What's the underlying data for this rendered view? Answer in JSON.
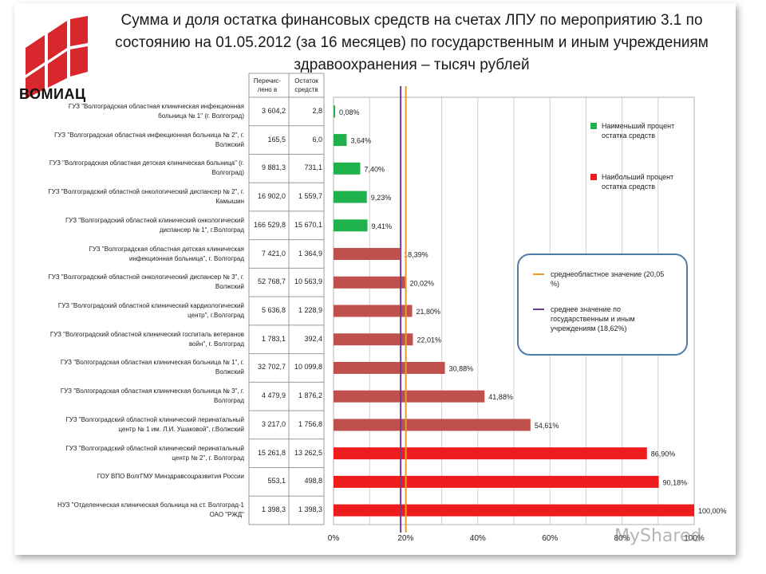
{
  "title": "Сумма и доля остатка финансовых средств на счетах ЛПУ по мероприятию 3.1 по состоянию на 01.05.2012 (за 16 месяцев) по государственным и иным учреждениям здравоохранения – тысяч рублей",
  "logo_text": "ВОМИАЦ",
  "watermark": "MyShared",
  "table_headers": [
    "Перечис-лено в",
    "Остаток средств"
  ],
  "legend": {
    "min": "Наименьший процент остатка средств",
    "max": "Наибольший процент остатка средств",
    "avg_region": "среднеобластное значение (20,05 %)",
    "avg_gov": "среднее значение по государственным и иным учреждениям (18,62%)"
  },
  "colors": {
    "green": "#1fb14b",
    "brown": "#c0504d",
    "red": "#ee1c1c",
    "avg_region": "#e69b2f",
    "avg_gov": "#6a3f8f"
  },
  "chart_data": {
    "type": "bar",
    "orientation": "horizontal",
    "x_ticks": [
      "0%",
      "20%",
      "40%",
      "60%",
      "80%",
      "100%"
    ],
    "xlim": [
      0,
      100
    ],
    "reference_lines": [
      {
        "name": "среднеобластное значение",
        "value": 20.05
      },
      {
        "name": "среднее значение по государственным и иным учреждениям",
        "value": 18.62
      }
    ],
    "rows": [
      {
        "label": "ГУЗ \"Волгоградская областная клиническая инфекционная больница № 1\" (г. Волгоград)",
        "transferred": "3 604,2",
        "remainder": "2,8",
        "value": 0.08,
        "value_label": "0,08%",
        "group": "green"
      },
      {
        "label": "ГУЗ \"Волгоградская областная инфекционная больница № 2\", г. Волжский",
        "transferred": "165,5",
        "remainder": "6,0",
        "value": 3.64,
        "value_label": "3,64%",
        "group": "green"
      },
      {
        "label": "ГУЗ \"Волгоградская областная детская клиническая больница\" (г. Волгоград)",
        "transferred": "9 881,3",
        "remainder": "731,1",
        "value": 7.4,
        "value_label": "7,40%",
        "group": "green"
      },
      {
        "label": "ГУЗ \"Волгоградский областной онкологический диспансер № 2\", г. Камышин",
        "transferred": "16 902,0",
        "remainder": "1 559,7",
        "value": 9.23,
        "value_label": "9,23%",
        "group": "green"
      },
      {
        "label": "ГУЗ \"Волгоградский областной клинический онкологический диспансер № 1\", г.Волгоград",
        "transferred": "166 529,8",
        "remainder": "15 670,1",
        "value": 9.41,
        "value_label": "9,41%",
        "group": "green"
      },
      {
        "label": "ГУЗ \"Волгоградская областная детская клиническая инфекционная больница\", г. Волгоград",
        "transferred": "7 421,0",
        "remainder": "1 364,9",
        "value": 18.39,
        "value_label": "18,39%",
        "group": "brown"
      },
      {
        "label": "ГУЗ \"Волгоградский областной онкологический диспансер № 3\", г. Волжский",
        "transferred": "52 768,7",
        "remainder": "10 563,9",
        "value": 20.02,
        "value_label": "20,02%",
        "group": "brown"
      },
      {
        "label": "ГУЗ \"Волгоградский областной клинический кардиологический центр\", г.Волгоград",
        "transferred": "5 636,8",
        "remainder": "1 228,9",
        "value": 21.8,
        "value_label": "21,80%",
        "group": "brown"
      },
      {
        "label": "ГУЗ \"Волгоградский областной клинический госпиталь ветеранов войн\", г. Волгоград",
        "transferred": "1 783,1",
        "remainder": "392,4",
        "value": 22.01,
        "value_label": "22,01%",
        "group": "brown"
      },
      {
        "label": "ГУЗ \"Волгоградская областная клиническая больница № 1\", г. Волжский",
        "transferred": "32 702,7",
        "remainder": "10 099,8",
        "value": 30.88,
        "value_label": "30,88%",
        "group": "brown"
      },
      {
        "label": "ГУЗ \"Волгоградская областная клиническая больница № 3\", г. Волгоград",
        "transferred": "4 479,9",
        "remainder": "1 876,2",
        "value": 41.88,
        "value_label": "41,88%",
        "group": "brown"
      },
      {
        "label": "ГУЗ \"Волгоградский областной клинический перинатальный центр № 1 им. Л.И. Ушаковой\", г.Волжский",
        "transferred": "3 217,0",
        "remainder": "1 756,8",
        "value": 54.61,
        "value_label": "54,61%",
        "group": "brown"
      },
      {
        "label": "ГУЗ \"Волгоградский областной клинический перинатальный центр № 2\", г. Волгоград",
        "transferred": "15 261,8",
        "remainder": "13 262,5",
        "value": 86.9,
        "value_label": "86,90%",
        "group": "red"
      },
      {
        "label": "ГОУ ВПО ВолгГМУ Минздравсоцразвития России",
        "transferred": "553,1",
        "remainder": "498,8",
        "value": 90.18,
        "value_label": "90,18%",
        "group": "red"
      },
      {
        "label": "НУЗ \"Отделенческая клиническая больница на ст. Волгоград-1 ОАО \"РЖД\"",
        "transferred": "1 398,3",
        "remainder": "1 398,3",
        "value": 100.0,
        "value_label": "100,00%",
        "group": "red"
      }
    ]
  }
}
